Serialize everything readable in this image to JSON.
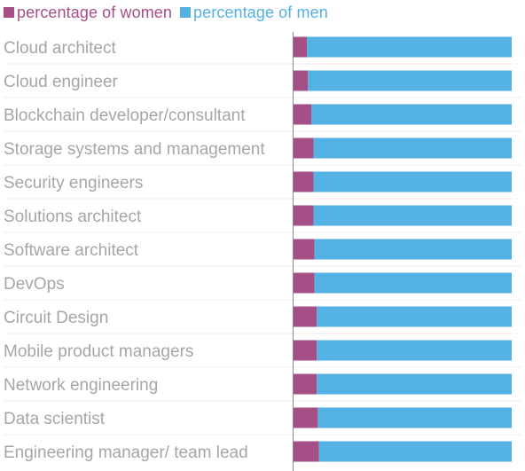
{
  "colors": {
    "women": "#a64e86",
    "men": "#53b1e4",
    "label": "#a6a6a6",
    "axis": "#888888",
    "grid": "#eeeeee"
  },
  "legend": [
    {
      "name": "percentage of women",
      "color": "#a64e86"
    },
    {
      "name": "percentage of men",
      "color": "#53b1e4"
    }
  ],
  "chart_data": {
    "type": "bar",
    "orientation": "horizontal",
    "stacked": true,
    "categories": [
      "Cloud architect",
      "Cloud engineer",
      "Blockchain developer/consultant",
      "Storage systems and management",
      "Security engineers",
      "Solutions architect",
      "Software architect",
      "DevOps",
      "Circuit Design",
      "Mobile product managers",
      "Network engineering",
      "Data scientist",
      "Engineering manager/ team lead"
    ],
    "series": [
      {
        "name": "percentage of women",
        "values": [
          6.5,
          7,
          8.5,
          9.5,
          9.5,
          9.5,
          10,
          10,
          11,
          11,
          11,
          11.5,
          12
        ]
      },
      {
        "name": "percentage of men",
        "values": [
          93.5,
          93,
          91.5,
          90.5,
          90.5,
          90.5,
          90,
          90,
          89,
          89,
          89,
          88.5,
          88
        ]
      }
    ],
    "xlim": [
      0,
      100
    ],
    "grid": false,
    "legend_position": "top-left"
  }
}
